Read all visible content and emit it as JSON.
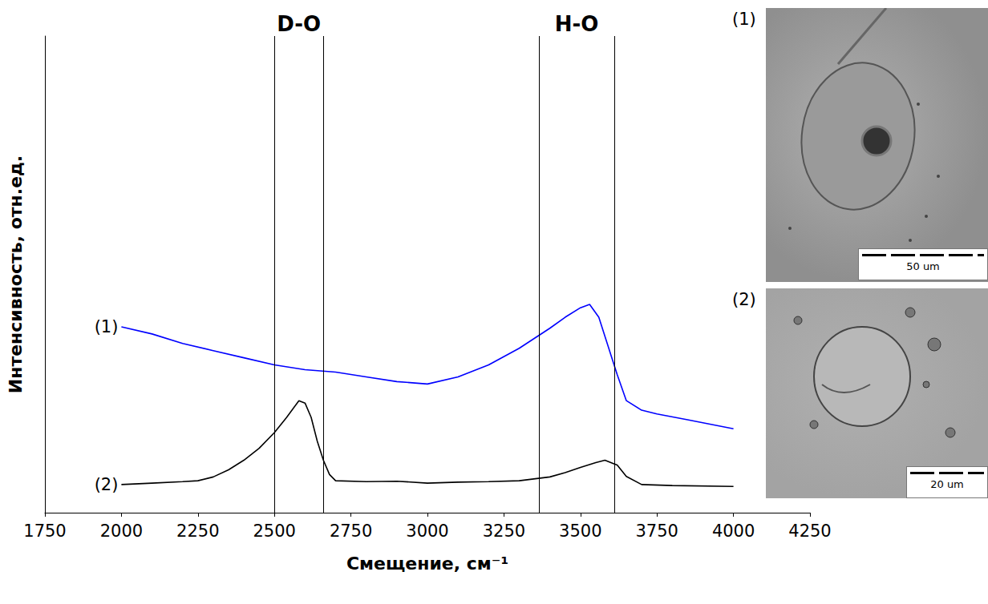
{
  "chart_data": {
    "type": "line",
    "x_label": "Смещение, см⁻¹",
    "y_label": "Интенсивность, отн.ед.",
    "xlim": [
      1750,
      4250
    ],
    "xticks": [
      1750,
      2000,
      2250,
      2500,
      2750,
      3000,
      3250,
      3500,
      3750,
      4000,
      4250
    ],
    "ylim": [
      0,
      100
    ],
    "tick_labels": "x",
    "grid": false,
    "bands": [
      {
        "label": "D-O",
        "range": [
          2500,
          2660
        ]
      },
      {
        "label": "H-O",
        "range": [
          3365,
          3610
        ]
      }
    ],
    "series": [
      {
        "name": "(1)",
        "color": "#0000ff",
        "marker": "none",
        "x": [
          2000,
          2100,
          2200,
          2300,
          2400,
          2500,
          2600,
          2700,
          2800,
          2900,
          3000,
          3100,
          3200,
          3300,
          3400,
          3450,
          3500,
          3530,
          3560,
          3590,
          3620,
          3650,
          3700,
          3750,
          3850,
          4000
        ],
        "values": [
          39,
          37.5,
          35.5,
          34,
          32.5,
          31,
          30,
          29.5,
          28.5,
          27.5,
          27,
          28.5,
          31,
          34.5,
          38.7,
          41,
          43,
          43.7,
          41,
          35,
          29,
          23.5,
          21.5,
          20.7,
          19.5,
          17.6
        ]
      },
      {
        "name": "(2)",
        "color": "#000000",
        "marker": "none",
        "x": [
          2000,
          2100,
          2200,
          2250,
          2300,
          2350,
          2400,
          2450,
          2500,
          2540,
          2580,
          2600,
          2620,
          2640,
          2660,
          2680,
          2700,
          2800,
          2900,
          3000,
          3100,
          3200,
          3300,
          3400,
          3450,
          3500,
          3550,
          3580,
          3620,
          3650,
          3700,
          3800,
          4000
        ],
        "values": [
          5.9,
          6.2,
          6.5,
          6.7,
          7.5,
          9,
          11,
          13.5,
          16.8,
          20,
          23.5,
          23,
          20,
          15,
          11,
          8,
          6.7,
          6.5,
          6.6,
          6.2,
          6.4,
          6.5,
          6.7,
          7.5,
          8.4,
          9.5,
          10.5,
          11,
          10,
          7.6,
          5.9,
          5.7,
          5.5
        ]
      }
    ],
    "images": [
      {
        "label": "(1)",
        "scale_bar": "50 um"
      },
      {
        "label": "(2)",
        "scale_bar": "20 um"
      }
    ]
  }
}
